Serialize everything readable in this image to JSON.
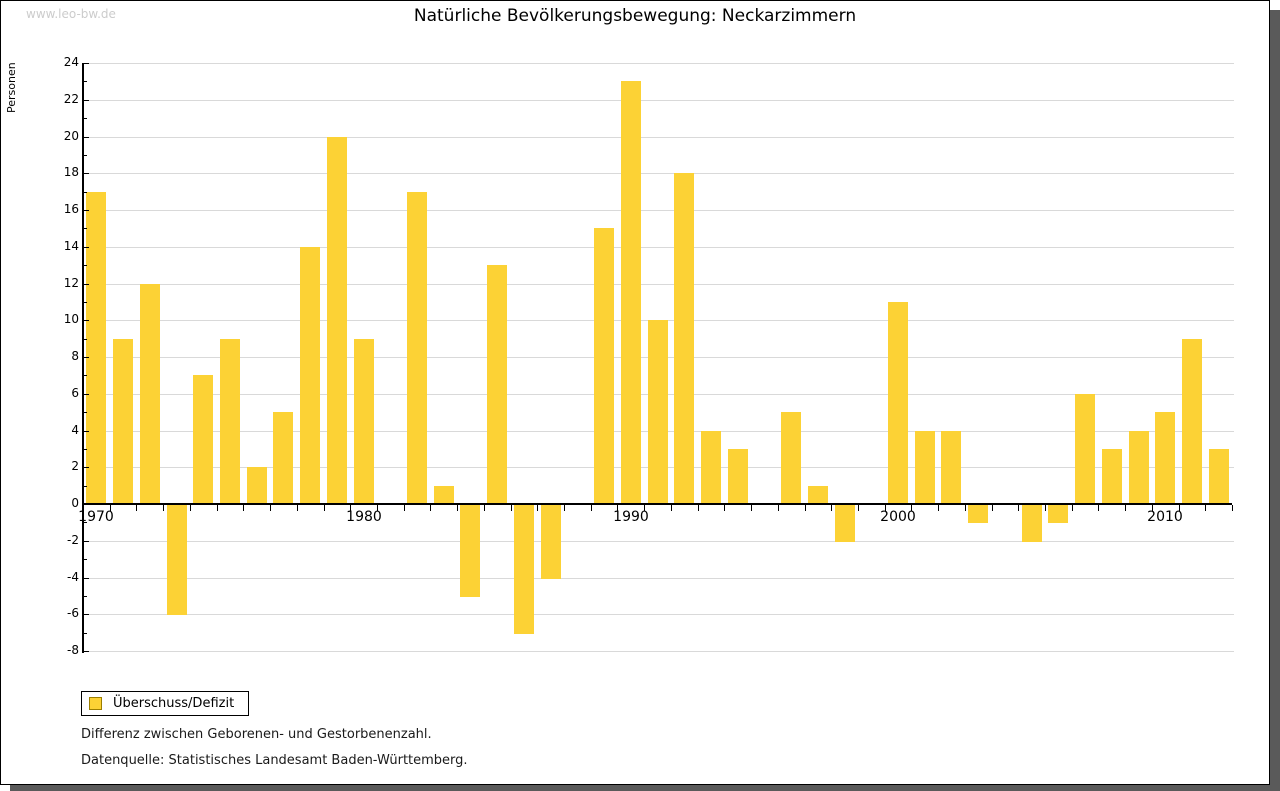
{
  "watermark": "www.leo-bw.de",
  "title": "Natürliche Bevölkerungsbewegung: Neckarzimmern",
  "legend": {
    "label": "Überschuss/Defizit"
  },
  "notes": [
    "Differenz zwischen Geborenen- und Gestorbenenzahl.",
    "Datenquelle: Statistisches Landesamt Baden-Württemberg."
  ],
  "colors": {
    "bar": "#FCD235",
    "legend_swatch_border": "#9C7E00",
    "grid": "#D9D9D9",
    "axis": "#000000",
    "watermark_text": "#CCCCCC",
    "frame_shadow": "#5A5A5A"
  },
  "chart_data": {
    "type": "bar",
    "title": "Natürliche Bevölkerungsbewegung: Neckarzimmern",
    "xlabel": "",
    "ylabel": "Personen",
    "x": [
      1970,
      1971,
      1972,
      1973,
      1974,
      1975,
      1976,
      1977,
      1978,
      1979,
      1980,
      1981,
      1982,
      1983,
      1984,
      1985,
      1986,
      1987,
      1988,
      1989,
      1990,
      1991,
      1992,
      1993,
      1994,
      1995,
      1996,
      1997,
      1998,
      1999,
      2000,
      2001,
      2002,
      2003,
      2004,
      2005,
      2006,
      2007,
      2008,
      2009,
      2010,
      2011,
      2012
    ],
    "values": [
      17,
      9,
      12,
      -6,
      7,
      9,
      2,
      5,
      14,
      20,
      9,
      0,
      17,
      1,
      -5,
      13,
      -7,
      -4,
      0,
      15,
      23,
      10,
      18,
      4,
      3,
      0,
      5,
      1,
      -2,
      0,
      11,
      4,
      4,
      -1,
      0,
      -2,
      -1,
      6,
      3,
      4,
      5,
      9,
      3
    ],
    "series_name": "Überschuss/Defizit",
    "ylim": [
      -8,
      24
    ],
    "ytick_step": 2,
    "yminor_step": 1,
    "xticks_labeled": [
      1970,
      1980,
      1990,
      2000,
      2010
    ],
    "legend_entries": [
      "Überschuss/Defizit"
    ],
    "legend_position": "bottom-left",
    "grid": "horizontal-only"
  }
}
